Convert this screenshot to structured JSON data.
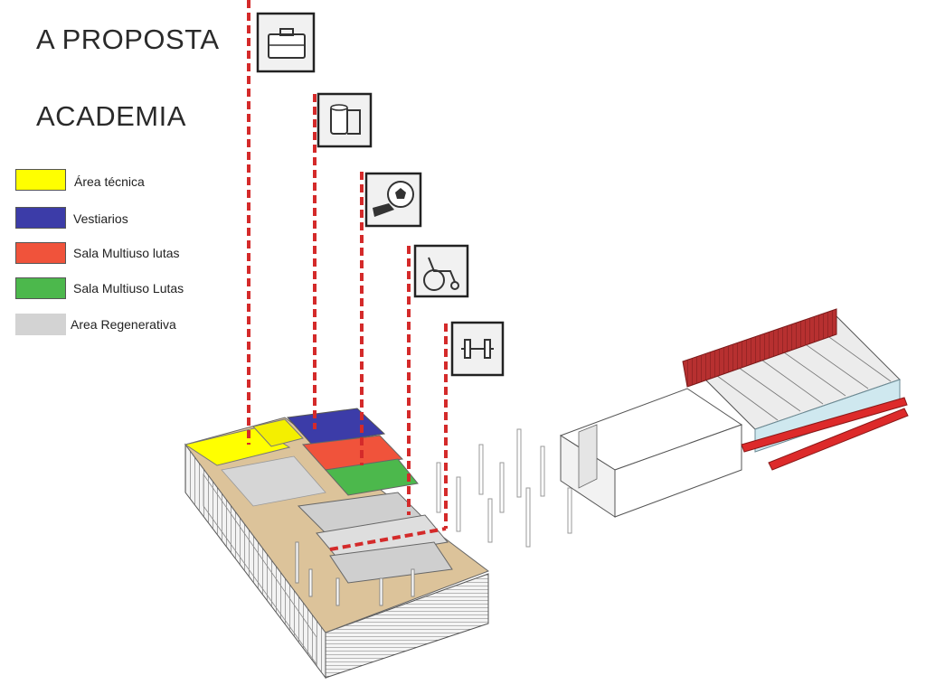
{
  "header": {
    "title": "A PROPOSTA",
    "subtitle": "ACADEMIA"
  },
  "legend": [
    {
      "label": "Área técnica",
      "color": "#ffff00"
    },
    {
      "label": "Vestiarios",
      "color": "#3c3ca8"
    },
    {
      "label": "Sala Multiuso lutas",
      "color": "#f0533b"
    },
    {
      "label": "Sala Multiuso Lutas",
      "color": "#4cb84c"
    },
    {
      "label": "Area Regenerativa",
      "color": "#d3d3d3"
    }
  ],
  "icons": [
    {
      "name": "briefcase-icon"
    },
    {
      "name": "toilet-paper-icon"
    },
    {
      "name": "soccer-icon"
    },
    {
      "name": "wheelchair-icon"
    },
    {
      "name": "dumbbell-icon"
    }
  ],
  "colors": {
    "leader_line": "#d42a2a",
    "wood_floor": "#dcc39a",
    "red_wall": "#b72d2d",
    "glass": "#cfe8ef"
  }
}
